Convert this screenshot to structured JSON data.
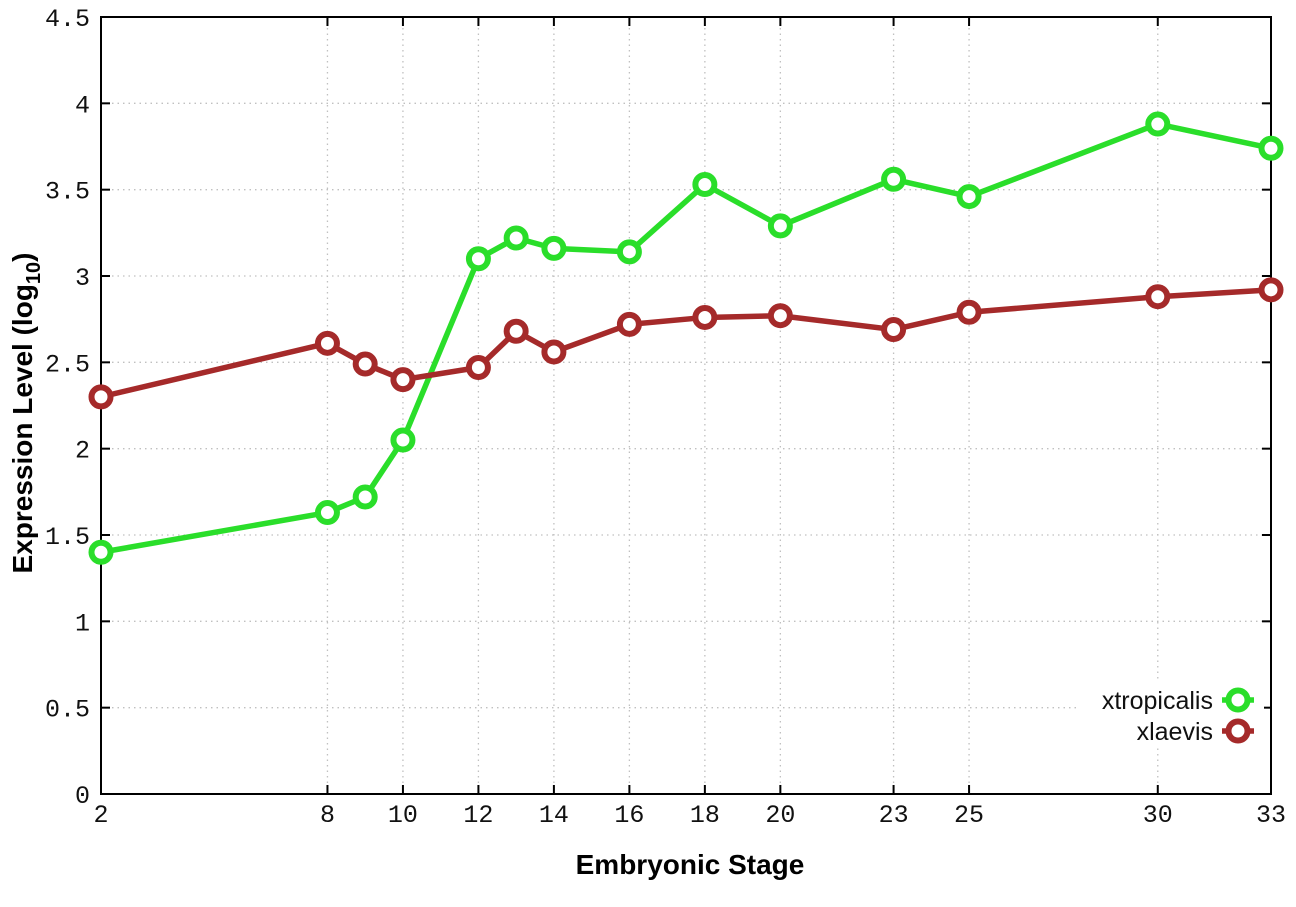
{
  "chart_data": {
    "type": "line",
    "title": "",
    "xlabel": "Embryonic Stage",
    "ylabel_main": "Expression Level (log",
    "ylabel_sub": "10",
    "ylabel_close": ")",
    "x": [
      2,
      8,
      9,
      10,
      12,
      13,
      14,
      16,
      18,
      20,
      23,
      25,
      30,
      33
    ],
    "series": [
      {
        "name": "xtropicalis",
        "color": "#2ade2a",
        "values": [
          1.4,
          1.63,
          1.72,
          2.05,
          3.1,
          3.22,
          3.16,
          3.14,
          3.53,
          3.29,
          3.56,
          3.46,
          3.88,
          3.74
        ]
      },
      {
        "name": "xlaevis",
        "color": "#a52a2a",
        "values": [
          2.3,
          2.61,
          2.49,
          2.4,
          2.47,
          2.68,
          2.56,
          2.72,
          2.76,
          2.77,
          2.69,
          2.79,
          2.88,
          2.92
        ]
      }
    ],
    "xlim": [
      2,
      33
    ],
    "ylim": [
      0,
      4.5
    ],
    "x_ticks": [
      2,
      8,
      10,
      12,
      14,
      16,
      18,
      20,
      23,
      25,
      30,
      33
    ],
    "x_tick_labels": [
      "2",
      "8",
      "10",
      "12",
      "14",
      "16",
      "18",
      "20",
      "23",
      "25",
      "30",
      "33"
    ],
    "y_ticks": [
      0,
      0.5,
      1,
      1.5,
      2,
      2.5,
      3,
      3.5,
      4,
      4.5
    ],
    "y_tick_labels": [
      "0",
      "0.5",
      "1",
      "1.5",
      "2",
      "2.5",
      "3",
      "3.5",
      "4",
      "4.5"
    ],
    "grid": true,
    "legend_position": "bottom-right",
    "colors": {
      "grid": "#c0c0c0",
      "axis": "#000000",
      "background": "#ffffff",
      "marker_fill": "#ffffff"
    }
  }
}
